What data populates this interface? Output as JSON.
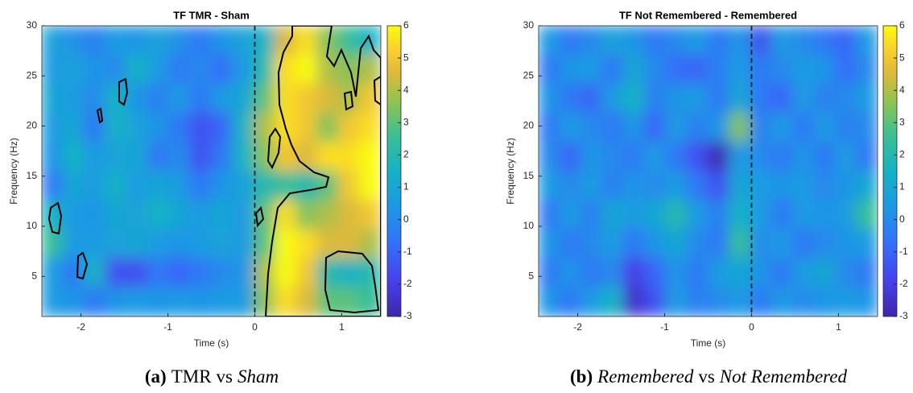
{
  "chart_data": [
    {
      "type": "heatmap",
      "title": "TF TMR - Sham",
      "xlabel": "Time (s)",
      "ylabel": "Frequency (Hz)",
      "xlim": [
        -2.45,
        1.45
      ],
      "ylim": [
        1,
        30
      ],
      "xticks": [
        -2,
        -1,
        0,
        1
      ],
      "yticks": [
        5,
        10,
        15,
        20,
        25,
        30
      ],
      "clim": [
        -3,
        6
      ],
      "cticks": [
        -3,
        -2,
        -1,
        0,
        1,
        2,
        3,
        4,
        5,
        6
      ],
      "vline": 0,
      "z": [
        [
          0.8,
          0.2,
          -0.3,
          0.5,
          0.3,
          0.8,
          0.2,
          -0.5,
          0.3,
          0.8,
          1.5,
          4.5,
          5.5,
          3.5,
          2.5,
          1.5
        ],
        [
          0.5,
          0.8,
          0.3,
          0,
          1.5,
          0.5,
          -0.5,
          0,
          -0.8,
          0.5,
          2,
          5.5,
          6,
          4,
          3.5,
          4
        ],
        [
          1,
          0.5,
          0,
          1.5,
          0.3,
          -0.3,
          0.5,
          -0.5,
          0.5,
          1,
          3,
          5.5,
          5,
          4.5,
          4,
          5
        ],
        [
          0.5,
          1,
          -0.5,
          1.5,
          0.8,
          0.3,
          -0.5,
          -1.5,
          -1,
          1.5,
          4,
          5.5,
          5,
          3.5,
          5,
          5.5
        ],
        [
          0.3,
          1.5,
          0.5,
          0.8,
          1,
          -0.5,
          0,
          -1.5,
          -0.5,
          1.5,
          3.5,
          5,
          4.5,
          5.5,
          5.5,
          6
        ],
        [
          -0.5,
          1,
          0.5,
          1.5,
          0.5,
          1,
          0.5,
          -0.5,
          0.3,
          0.8,
          2,
          2.5,
          2,
          3,
          5,
          6
        ],
        [
          1.5,
          0.5,
          0.3,
          1,
          0.8,
          1.5,
          1,
          0.5,
          1,
          0.5,
          3,
          5.5,
          3.5,
          4,
          4.5,
          5
        ],
        [
          2.5,
          0.5,
          0.5,
          0.8,
          1,
          0.5,
          0.3,
          0.5,
          0.8,
          0.5,
          3,
          6,
          5.5,
          4.5,
          4.5,
          4
        ],
        [
          0.5,
          -0.5,
          1.5,
          -1.5,
          -1.5,
          -0.5,
          -1,
          -0.5,
          0,
          0.3,
          4,
          6,
          5,
          2,
          1.5,
          2
        ],
        [
          0.5,
          0.3,
          -0.5,
          0.3,
          0.5,
          0.3,
          0.5,
          0.3,
          0.5,
          0.5,
          3.5,
          5.5,
          4.5,
          3,
          3,
          2.5
        ]
      ],
      "caption": {
        "label": "(a)",
        "parts": [
          "TMR",
          "vs",
          "Sham"
        ]
      }
    },
    {
      "type": "heatmap",
      "title": "TF Not Remembered - Remembered",
      "xlabel": "Time (s)",
      "ylabel": "Frequency (Hz)",
      "xlim": [
        -2.45,
        1.45
      ],
      "ylim": [
        1,
        30
      ],
      "xticks": [
        -2,
        -1,
        0,
        1
      ],
      "yticks": [
        5,
        10,
        15,
        20,
        25,
        30
      ],
      "clim": [
        -3,
        6
      ],
      "cticks": [
        -3,
        -2,
        -1,
        0,
        1,
        2,
        3,
        4,
        5,
        6
      ],
      "vline": 0,
      "z": [
        [
          0.5,
          -0.5,
          0,
          0.8,
          0.3,
          -0.5,
          0,
          0.5,
          -0.5,
          0.3,
          -1.5,
          0.5,
          0,
          -0.5,
          -1,
          0.5
        ],
        [
          -0.5,
          0.3,
          0.5,
          -0.5,
          1,
          0,
          -0.8,
          -1,
          -0.3,
          0.5,
          -0.5,
          0,
          0.5,
          0.3,
          -0.8,
          0
        ],
        [
          0.3,
          -0.5,
          -1,
          0.5,
          1.5,
          -0.3,
          0.3,
          0.5,
          -0.5,
          1,
          -0.5,
          -1,
          0.5,
          -0.3,
          0,
          0.5
        ],
        [
          -0.5,
          0.5,
          0,
          -0.5,
          0.3,
          -1,
          0.5,
          -0.3,
          0.3,
          3.5,
          -0.3,
          0.5,
          -0.5,
          0.5,
          -0.3,
          0
        ],
        [
          0,
          -1,
          0.3,
          0,
          -0.5,
          0.5,
          -0.5,
          -1.5,
          -2.8,
          0.5,
          0,
          -0.5,
          0.3,
          -0.5,
          0.5,
          -0.5
        ],
        [
          0.5,
          0,
          0.5,
          -0.3,
          0.3,
          0,
          0.5,
          -0.5,
          -1.5,
          1,
          0.5,
          0.3,
          0.5,
          0,
          0.3,
          1
        ],
        [
          -0.5,
          0.5,
          -0.3,
          1,
          0.5,
          1,
          2,
          0.5,
          -0.3,
          1.5,
          0.5,
          -0.5,
          0.5,
          0.3,
          0.5,
          2.5
        ],
        [
          0.3,
          -0.5,
          0,
          0.5,
          -0.5,
          0.3,
          1,
          0,
          -0.5,
          2.5,
          0,
          0.5,
          -0.5,
          0,
          0.3,
          0.5
        ],
        [
          -0.5,
          0.3,
          -0.5,
          0,
          -2,
          -1,
          0.3,
          -0.5,
          0.5,
          1,
          0.3,
          -0.5,
          0.5,
          1,
          0,
          -0.5
        ],
        [
          0.3,
          -0.5,
          0.5,
          1.5,
          -2.5,
          -1.5,
          0.5,
          -0.3,
          0,
          0.5,
          -0.5,
          0.5,
          0,
          0.3,
          0.5,
          0.3
        ]
      ],
      "caption": {
        "label": "(b)",
        "parts": [
          "Remembered",
          "vs",
          "Not Remembered"
        ]
      }
    }
  ]
}
